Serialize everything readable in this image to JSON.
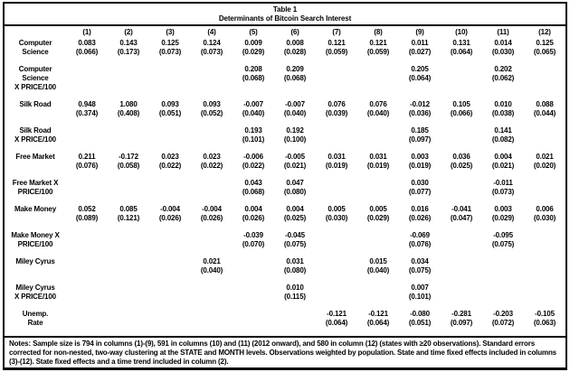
{
  "page": {
    "background": "#ffffff",
    "border_color": "#000000",
    "text_color": "#000000"
  },
  "table": {
    "title": "Table 1",
    "subtitle": "Determinants of Bitcoin Search Interest",
    "columns": [
      "(1)",
      "(2)",
      "(3)",
      "(4)",
      "(5)",
      "(6)",
      "(7)",
      "(8)",
      "(9)",
      "(10)",
      "(11)",
      "(12)"
    ],
    "rows": [
      {
        "label": "Computer\nScience",
        "coefs": [
          "0.083",
          "0.143",
          "0.125",
          "0.124",
          "0.009",
          "0.008",
          "0.121",
          "0.121",
          "0.011",
          "0.131",
          "0.014",
          "0.125"
        ],
        "ses": [
          "(0.066)",
          "(0.173)",
          "(0.073)",
          "(0.073)",
          "(0.029)",
          "(0.028)",
          "(0.059)",
          "(0.059)",
          "(0.027)",
          "(0.064)",
          "(0.030)",
          "(0.065)"
        ]
      },
      {
        "label": "Computer\nScience\nX PRICE/100",
        "coefs": [
          "",
          "",
          "",
          "",
          "0.208",
          "0.209",
          "",
          "",
          "0.205",
          "",
          "0.202",
          ""
        ],
        "ses": [
          "",
          "",
          "",
          "",
          "(0.068)",
          "(0.068)",
          "",
          "",
          "(0.064)",
          "",
          "(0.062)",
          ""
        ]
      },
      {
        "label": "Silk Road",
        "coefs": [
          "0.948",
          "1.080",
          "0.093",
          "0.093",
          "-0.007",
          "-0.007",
          "0.076",
          "0.076",
          "-0.012",
          "0.105",
          "0.010",
          "0.088"
        ],
        "ses": [
          "(0.374)",
          "(0.408)",
          "(0.051)",
          "(0.052)",
          "(0.040)",
          "(0.040)",
          "(0.039)",
          "(0.040)",
          "(0.036)",
          "(0.066)",
          "(0.038)",
          "(0.044)"
        ]
      },
      {
        "label": "Silk Road\nX PRICE/100",
        "coefs": [
          "",
          "",
          "",
          "",
          "0.193",
          "0.192",
          "",
          "",
          "0.185",
          "",
          "0.141",
          ""
        ],
        "ses": [
          "",
          "",
          "",
          "",
          "(0.101)",
          "(0.100)",
          "",
          "",
          "(0.097)",
          "",
          "(0.082)",
          ""
        ]
      },
      {
        "label": "Free Market",
        "coefs": [
          "0.211",
          "-0.172",
          "0.023",
          "0.023",
          "-0.006",
          "-0.005",
          "0.031",
          "0.031",
          "0.003",
          "0.036",
          "0.004",
          "0.021"
        ],
        "ses": [
          "(0.076)",
          "(0.058)",
          "(0.022)",
          "(0.022)",
          "(0.022)",
          "(0.021)",
          "(0.019)",
          "(0.019)",
          "(0.019)",
          "(0.025)",
          "(0.021)",
          "(0.020)"
        ]
      },
      {
        "label": "Free Market X\nPRICE/100",
        "coefs": [
          "",
          "",
          "",
          "",
          "0.043",
          "0.047",
          "",
          "",
          "0.030",
          "",
          "-0.011",
          ""
        ],
        "ses": [
          "",
          "",
          "",
          "",
          "(0.068)",
          "(0.080)",
          "",
          "",
          "(0.077)",
          "",
          "(0.073)",
          ""
        ]
      },
      {
        "label": "Make Money",
        "coefs": [
          "0.052",
          "0.085",
          "-0.004",
          "-0.004",
          "0.004",
          "0.004",
          "0.005",
          "0.005",
          "0.016",
          "-0.041",
          "0.003",
          "0.006"
        ],
        "ses": [
          "(0.089)",
          "(0.121)",
          "(0.026)",
          "(0.026)",
          "(0.026)",
          "(0.025)",
          "(0.030)",
          "(0.029)",
          "(0.026)",
          "(0.047)",
          "(0.029)",
          "(0.030)"
        ]
      },
      {
        "label": "Make Money X\nPRICE/100",
        "coefs": [
          "",
          "",
          "",
          "",
          "-0.039",
          "-0.045",
          "",
          "",
          "-0.069",
          "",
          "-0.095",
          ""
        ],
        "ses": [
          "",
          "",
          "",
          "",
          "(0.070)",
          "(0.075)",
          "",
          "",
          "(0.076)",
          "",
          "(0.075)",
          ""
        ]
      },
      {
        "label": "Miley Cyrus",
        "coefs": [
          "",
          "",
          "",
          "0.021",
          "",
          "0.031",
          "",
          "0.015",
          "0.034",
          "",
          "",
          ""
        ],
        "ses": [
          "",
          "",
          "",
          "(0.040)",
          "",
          "(0.080)",
          "",
          "(0.040)",
          "(0.075)",
          "",
          "",
          ""
        ]
      },
      {
        "label": "Miley Cyrus\nX PRICE/100",
        "coefs": [
          "",
          "",
          "",
          "",
          "",
          "0.010",
          "",
          "",
          "0.007",
          "",
          "",
          ""
        ],
        "ses": [
          "",
          "",
          "",
          "",
          "",
          "(0.115)",
          "",
          "",
          "(0.101)",
          "",
          "",
          ""
        ]
      },
      {
        "label": "Unemp.\nRate",
        "coefs": [
          "",
          "",
          "",
          "",
          "",
          "",
          "-0.121",
          "-0.121",
          "-0.080",
          "-0.281",
          "-0.203",
          "-0.105"
        ],
        "ses": [
          "",
          "",
          "",
          "",
          "",
          "",
          "(0.064)",
          "(0.064)",
          "(0.051)",
          "(0.097)",
          "(0.072)",
          "(0.063)"
        ]
      }
    ],
    "notes": "Notes: Sample size is 794 in columns (1)-(9), 591 in columns (10) and (11) (2012 onward), and 580 in column (12) (states with ≥20 observations). Standard errors corrected for non-nested, two-way clustering at the STATE and MONTH levels. Observations weighted by population. State and time fixed effects included in columns (3)-(12). State fixed effects and a time trend included in column (2)."
  }
}
